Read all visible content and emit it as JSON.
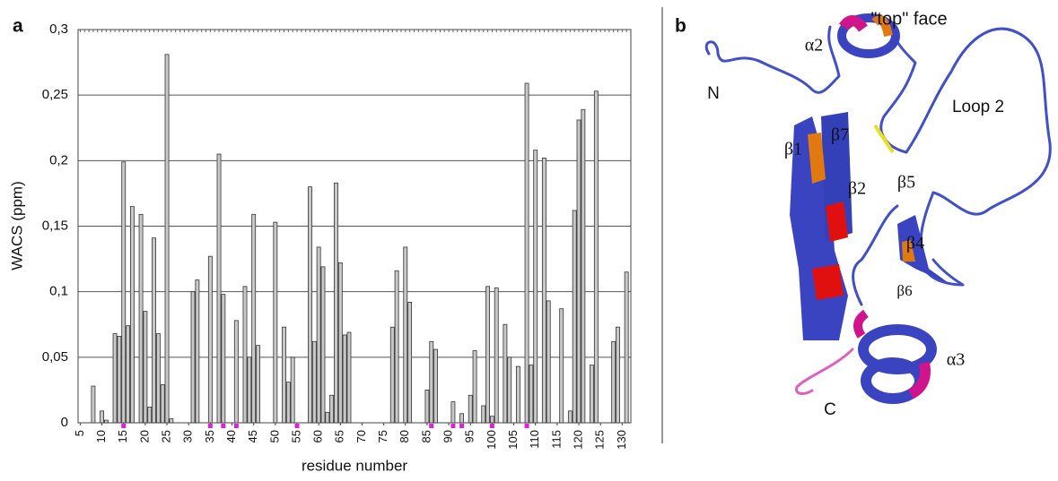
{
  "chart_data": {
    "type": "bar",
    "panel_label": "a",
    "xlabel": "residue number",
    "ylabel": "WACS (ppm)",
    "x": [
      8,
      10,
      11,
      13,
      14,
      15,
      16,
      17,
      19,
      20,
      21,
      22,
      23,
      24,
      25,
      26,
      31,
      32,
      35,
      37,
      38,
      41,
      43,
      44,
      45,
      46,
      50,
      52,
      53,
      54,
      58,
      59,
      60,
      61,
      62,
      63,
      64,
      65,
      66,
      67,
      77,
      78,
      80,
      81,
      85,
      86,
      87,
      91,
      93,
      95,
      96,
      98,
      99,
      100,
      101,
      103,
      104,
      106,
      108,
      109,
      110,
      112,
      113,
      116,
      118,
      119,
      120,
      121,
      123,
      124,
      128,
      129,
      131
    ],
    "values": [
      0.028,
      0.009,
      0.002,
      0.068,
      0.066,
      0.199,
      0.074,
      0.165,
      0.159,
      0.085,
      0.012,
      0.141,
      0.068,
      0.029,
      0.281,
      0.003,
      0.1,
      0.109,
      0.127,
      0.205,
      0.098,
      0.078,
      0.104,
      0.05,
      0.159,
      0.059,
      0.153,
      0.073,
      0.031,
      0.05,
      0.18,
      0.062,
      0.134,
      0.119,
      0.008,
      0.021,
      0.183,
      0.122,
      0.067,
      0.069,
      0.073,
      0.116,
      0.134,
      0.092,
      0.025,
      0.062,
      0.056,
      0.016,
      0.007,
      0.021,
      0.055,
      0.013,
      0.104,
      0.005,
      0.103,
      0.075,
      0.05,
      0.043,
      0.259,
      0.044,
      0.208,
      0.202,
      0.093,
      0.087,
      0.009,
      0.162,
      0.231,
      0.239,
      0.044,
      0.253,
      0.062,
      0.073,
      0.115
    ],
    "color": "#c8c8c8",
    "markers": {
      "x": [
        15,
        35,
        38,
        41,
        55,
        86,
        91,
        93,
        100,
        108
      ],
      "color": "#e020d8"
    },
    "xlim": [
      4.5,
      132
    ],
    "xticks": [
      5,
      10,
      15,
      20,
      25,
      30,
      35,
      40,
      45,
      50,
      55,
      60,
      65,
      70,
      75,
      80,
      85,
      90,
      95,
      100,
      105,
      110,
      115,
      120,
      125,
      130
    ],
    "ylim": [
      0,
      0.3
    ],
    "yticks": [
      0,
      {
        "value": 0.05,
        "label": "0,05"
      },
      {
        "value": 0.1,
        "label": "0,1"
      },
      {
        "value": 0.15,
        "label": "0,15"
      },
      {
        "value": 0.2,
        "label": "0,2"
      },
      {
        "value": 0.25,
        "label": "0,25"
      },
      {
        "value": 0.3,
        "label": "0,3"
      }
    ],
    "grid": true
  },
  "structure": {
    "panel_label": "b",
    "labels": [
      "\"top\" face",
      "α2",
      "N",
      "Loop 2",
      "β1",
      "β7",
      "β2",
      "β5",
      "β4",
      "β6",
      "α3",
      "C"
    ]
  }
}
